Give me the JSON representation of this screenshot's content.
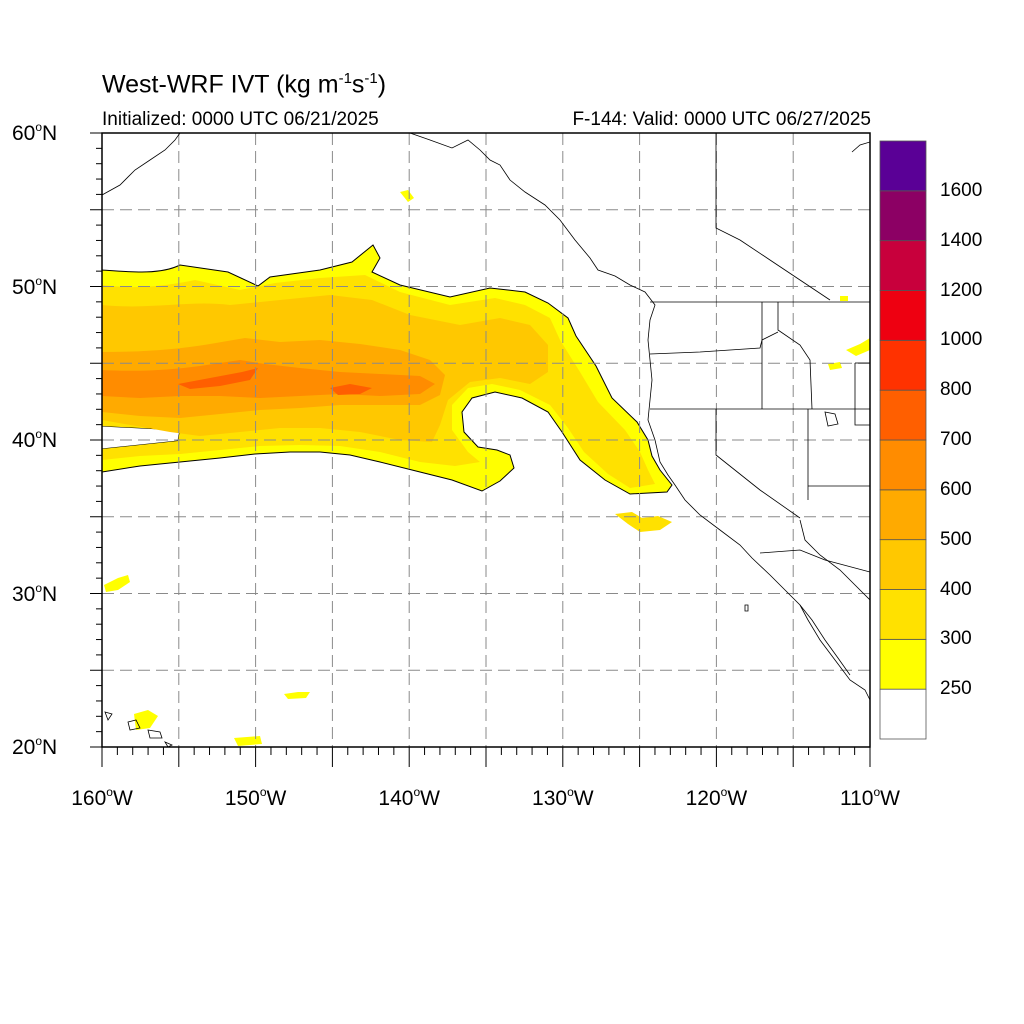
{
  "title": {
    "main": "West-WRF IVT (kg m",
    "exp1": "-1",
    "mid": "s",
    "exp2": "-1",
    "close": ")"
  },
  "initialized": "Initialized: 0000 UTC 06/21/2025",
  "valid": "F-144: Valid: 0000 UTC 06/27/2025",
  "map": {
    "projection": "cylindrical equidistant",
    "lon_range": [
      -160,
      -110
    ],
    "lat_range": [
      20,
      60
    ],
    "grid_lines": "dashed gray every 5 degrees",
    "lat_labels": [
      {
        "value": 60,
        "text": "60",
        "hemi": "N"
      },
      {
        "value": 50,
        "text": "50",
        "hemi": "N"
      },
      {
        "value": 40,
        "text": "40",
        "hemi": "N"
      },
      {
        "value": 30,
        "text": "30",
        "hemi": "N"
      },
      {
        "value": 20,
        "text": "20",
        "hemi": "N"
      }
    ],
    "lon_labels": [
      {
        "value": -160,
        "text": "160",
        "hemi": "W"
      },
      {
        "value": -150,
        "text": "150",
        "hemi": "W"
      },
      {
        "value": -140,
        "text": "140",
        "hemi": "W"
      },
      {
        "value": -130,
        "text": "130",
        "hemi": "W"
      },
      {
        "value": -120,
        "text": "120",
        "hemi": "W"
      },
      {
        "value": -110,
        "text": "110",
        "hemi": "W"
      }
    ],
    "features": [
      "atmospheric river plume (IVT ≥ 250) extending from 160°W to the northern California coast",
      "North American west coastline",
      "US state boundaries",
      "Hawaiian Islands"
    ]
  },
  "colorbar": {
    "levels": [
      250,
      300,
      400,
      500,
      600,
      700,
      800,
      1000,
      1200,
      1400,
      1600
    ],
    "labels": [
      "250",
      "300",
      "400",
      "500",
      "600",
      "700",
      "800",
      "1000",
      "1200",
      "1400",
      "1600"
    ],
    "colors": [
      "#ffffff",
      "#ffff00",
      "#ffe100",
      "#ffc800",
      "#ffaa00",
      "#ff8c00",
      "#ff5f00",
      "#ff3200",
      "#ee0011",
      "#c8003c",
      "#8c0064",
      "#5a0096"
    ]
  }
}
